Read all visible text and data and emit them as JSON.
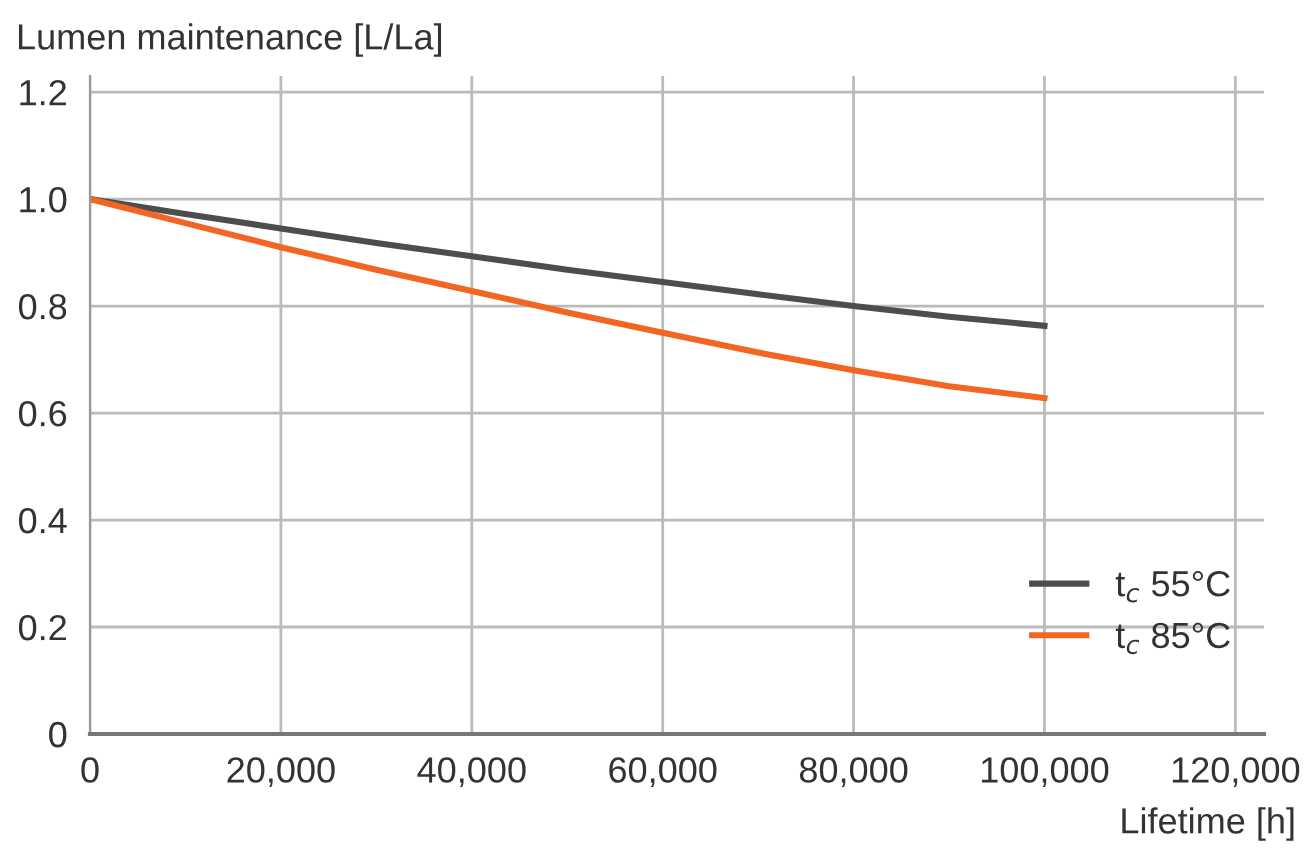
{
  "chart_data": {
    "type": "line",
    "xlabel": "Lifetime [h]",
    "ylabel": "Lumen maintenance [L/La]",
    "x": [
      0,
      10000,
      20000,
      30000,
      40000,
      50000,
      60000,
      70000,
      80000,
      90000,
      100000
    ],
    "series": [
      {
        "name": "t$_{c}$ 55°C",
        "color": "#4d4d4d",
        "values": [
          1.0,
          0.972,
          0.945,
          0.918,
          0.893,
          0.868,
          0.845,
          0.822,
          0.8,
          0.78,
          0.763
        ]
      },
      {
        "name": "t$_{c}$ 85°C",
        "color": "#f26522",
        "values": [
          1.0,
          0.955,
          0.91,
          0.868,
          0.828,
          0.788,
          0.75,
          0.713,
          0.68,
          0.65,
          0.628
        ]
      }
    ],
    "xlim": [
      0,
      123000
    ],
    "ylim": [
      0,
      1.23
    ],
    "xticks": [
      0,
      {
        "value": 20000,
        "label": "20,000"
      },
      {
        "value": 40000,
        "label": "40,000"
      },
      {
        "value": 60000,
        "label": "60,000"
      },
      {
        "value": 80000,
        "label": "80,000"
      },
      {
        "value": 100000,
        "label": "100,000"
      },
      {
        "value": 120000,
        "label": "120,000"
      }
    ],
    "yticks": [
      0,
      0.2,
      0.4,
      0.6,
      0.8,
      {
        "value": 1,
        "label": "1.0"
      },
      1.2
    ],
    "grid": true,
    "legend": "bottom right"
  }
}
